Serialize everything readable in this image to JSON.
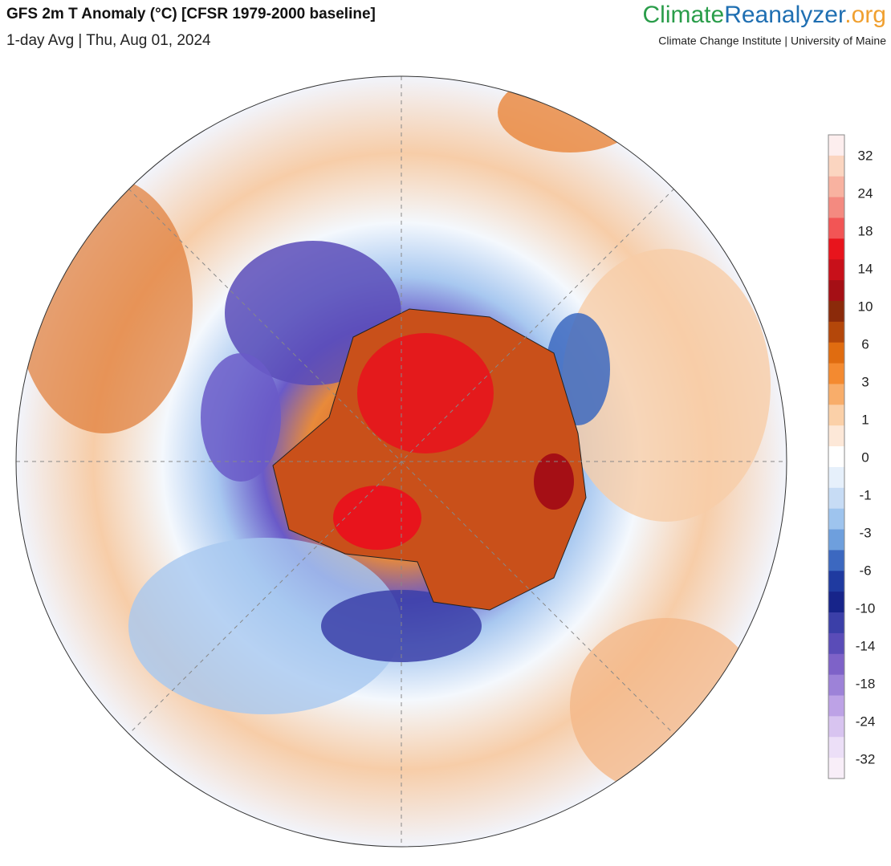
{
  "header": {
    "title": "GFS 2m T Anomaly (°C) [CFSR 1979-2000 baseline]",
    "subtitle": "1-day Avg | Thu, Aug 01, 2024"
  },
  "brand": {
    "name_parts": [
      {
        "text": "Climate",
        "color": "#2a9d4a"
      },
      {
        "text": "Reanalyzer",
        "color": "#1f6fb2"
      },
      {
        "text": ".org",
        "color": "#f0a030"
      }
    ],
    "tagline": "Climate Change Institute | University of Maine"
  },
  "colorbar": {
    "ticks": [
      32,
      24,
      18,
      14,
      10,
      6,
      3,
      1,
      0,
      -1,
      -3,
      -6,
      -10,
      -14,
      -18,
      -24,
      -32
    ],
    "colors": [
      "#fdeeee",
      "#fbd5c0",
      "#f8b2a0",
      "#f48a80",
      "#f25555",
      "#e8141c",
      "#c8101a",
      "#a50f15",
      "#8b2a0a",
      "#b4470a",
      "#e06c10",
      "#f48a30",
      "#f8ad6a",
      "#fbd0a8",
      "#fde8d8",
      "#ffffff",
      "#e6f0fb",
      "#c7dcf5",
      "#9ec4ee",
      "#6e9fdd",
      "#3c68c0",
      "#1f3aa0",
      "#17248a",
      "#3b3fa8",
      "#5a4cb8",
      "#7e62c8",
      "#9d82d8",
      "#bda2e6",
      "#d8c4f0",
      "#ecdff7",
      "#f8eef8"
    ]
  }
}
